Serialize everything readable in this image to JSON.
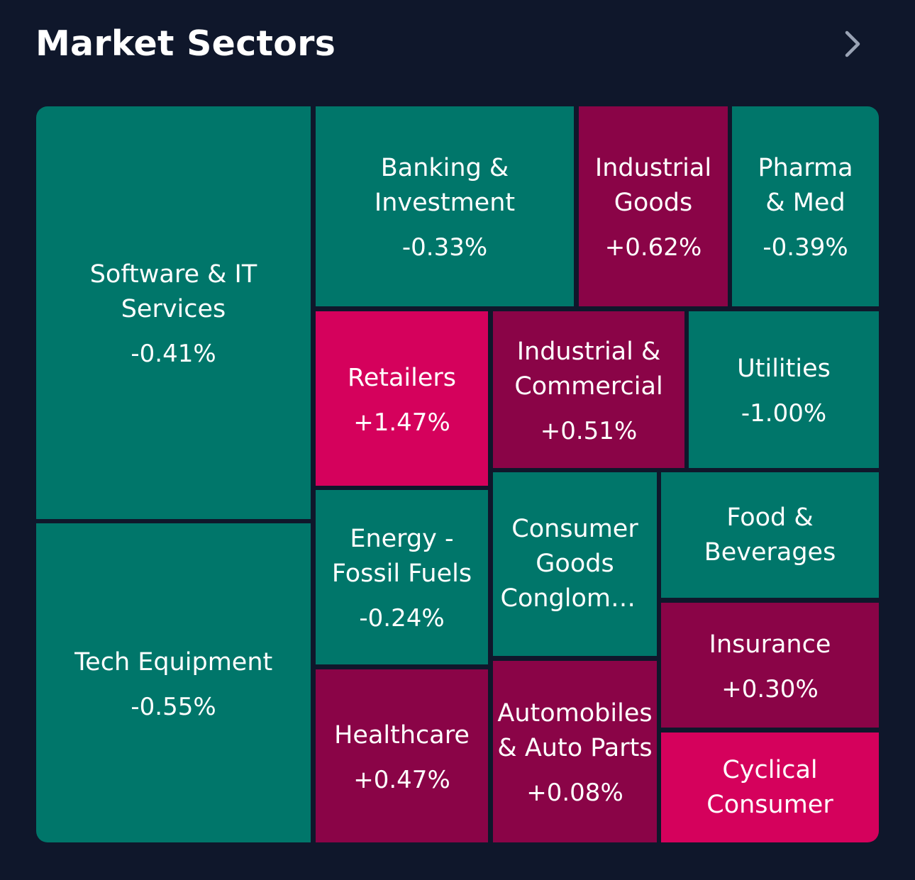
{
  "header": {
    "title": "Market Sectors",
    "chevron_icon": "chevron-right-icon"
  },
  "colors": {
    "background": "#0f172b",
    "negative": "#00766a",
    "positive_mild": "#8a0447",
    "positive_strong": "#d5015c"
  },
  "chart_data": {
    "type": "treemap",
    "title": "Market Sectors",
    "sectors": [
      {
        "name": "Software & IT Services",
        "change": "-0.41%",
        "value": -0.41
      },
      {
        "name": "Tech Equipment",
        "change": "-0.55%",
        "value": -0.55
      },
      {
        "name": "Banking & Investment",
        "change": "-0.33%",
        "value": -0.33
      },
      {
        "name": "Industrial Goods",
        "change": "+0.62%",
        "value": 0.62
      },
      {
        "name": "Pharma & Med",
        "change": "-0.39%",
        "value": -0.39
      },
      {
        "name": "Retailers",
        "change": "+1.47%",
        "value": 1.47
      },
      {
        "name": "Industrial & Commercial",
        "change": "+0.51%",
        "value": 0.51
      },
      {
        "name": "Utilities",
        "change": "-1.00%",
        "value": -1.0
      },
      {
        "name": "Energy - Fossil Fuels",
        "change": "-0.24%",
        "value": -0.24
      },
      {
        "name": "Consumer Goods Conglomerates",
        "change": "",
        "value": null
      },
      {
        "name": "Food & Beverages",
        "change": "",
        "value": null
      },
      {
        "name": "Healthcare",
        "change": "+0.47%",
        "value": 0.47
      },
      {
        "name": "Automobiles & Auto Parts",
        "change": "+0.08%",
        "value": 0.08
      },
      {
        "name": "Insurance",
        "change": "+0.30%",
        "value": 0.3
      },
      {
        "name": "Cyclical Consumer",
        "change": "",
        "value": null
      }
    ]
  }
}
